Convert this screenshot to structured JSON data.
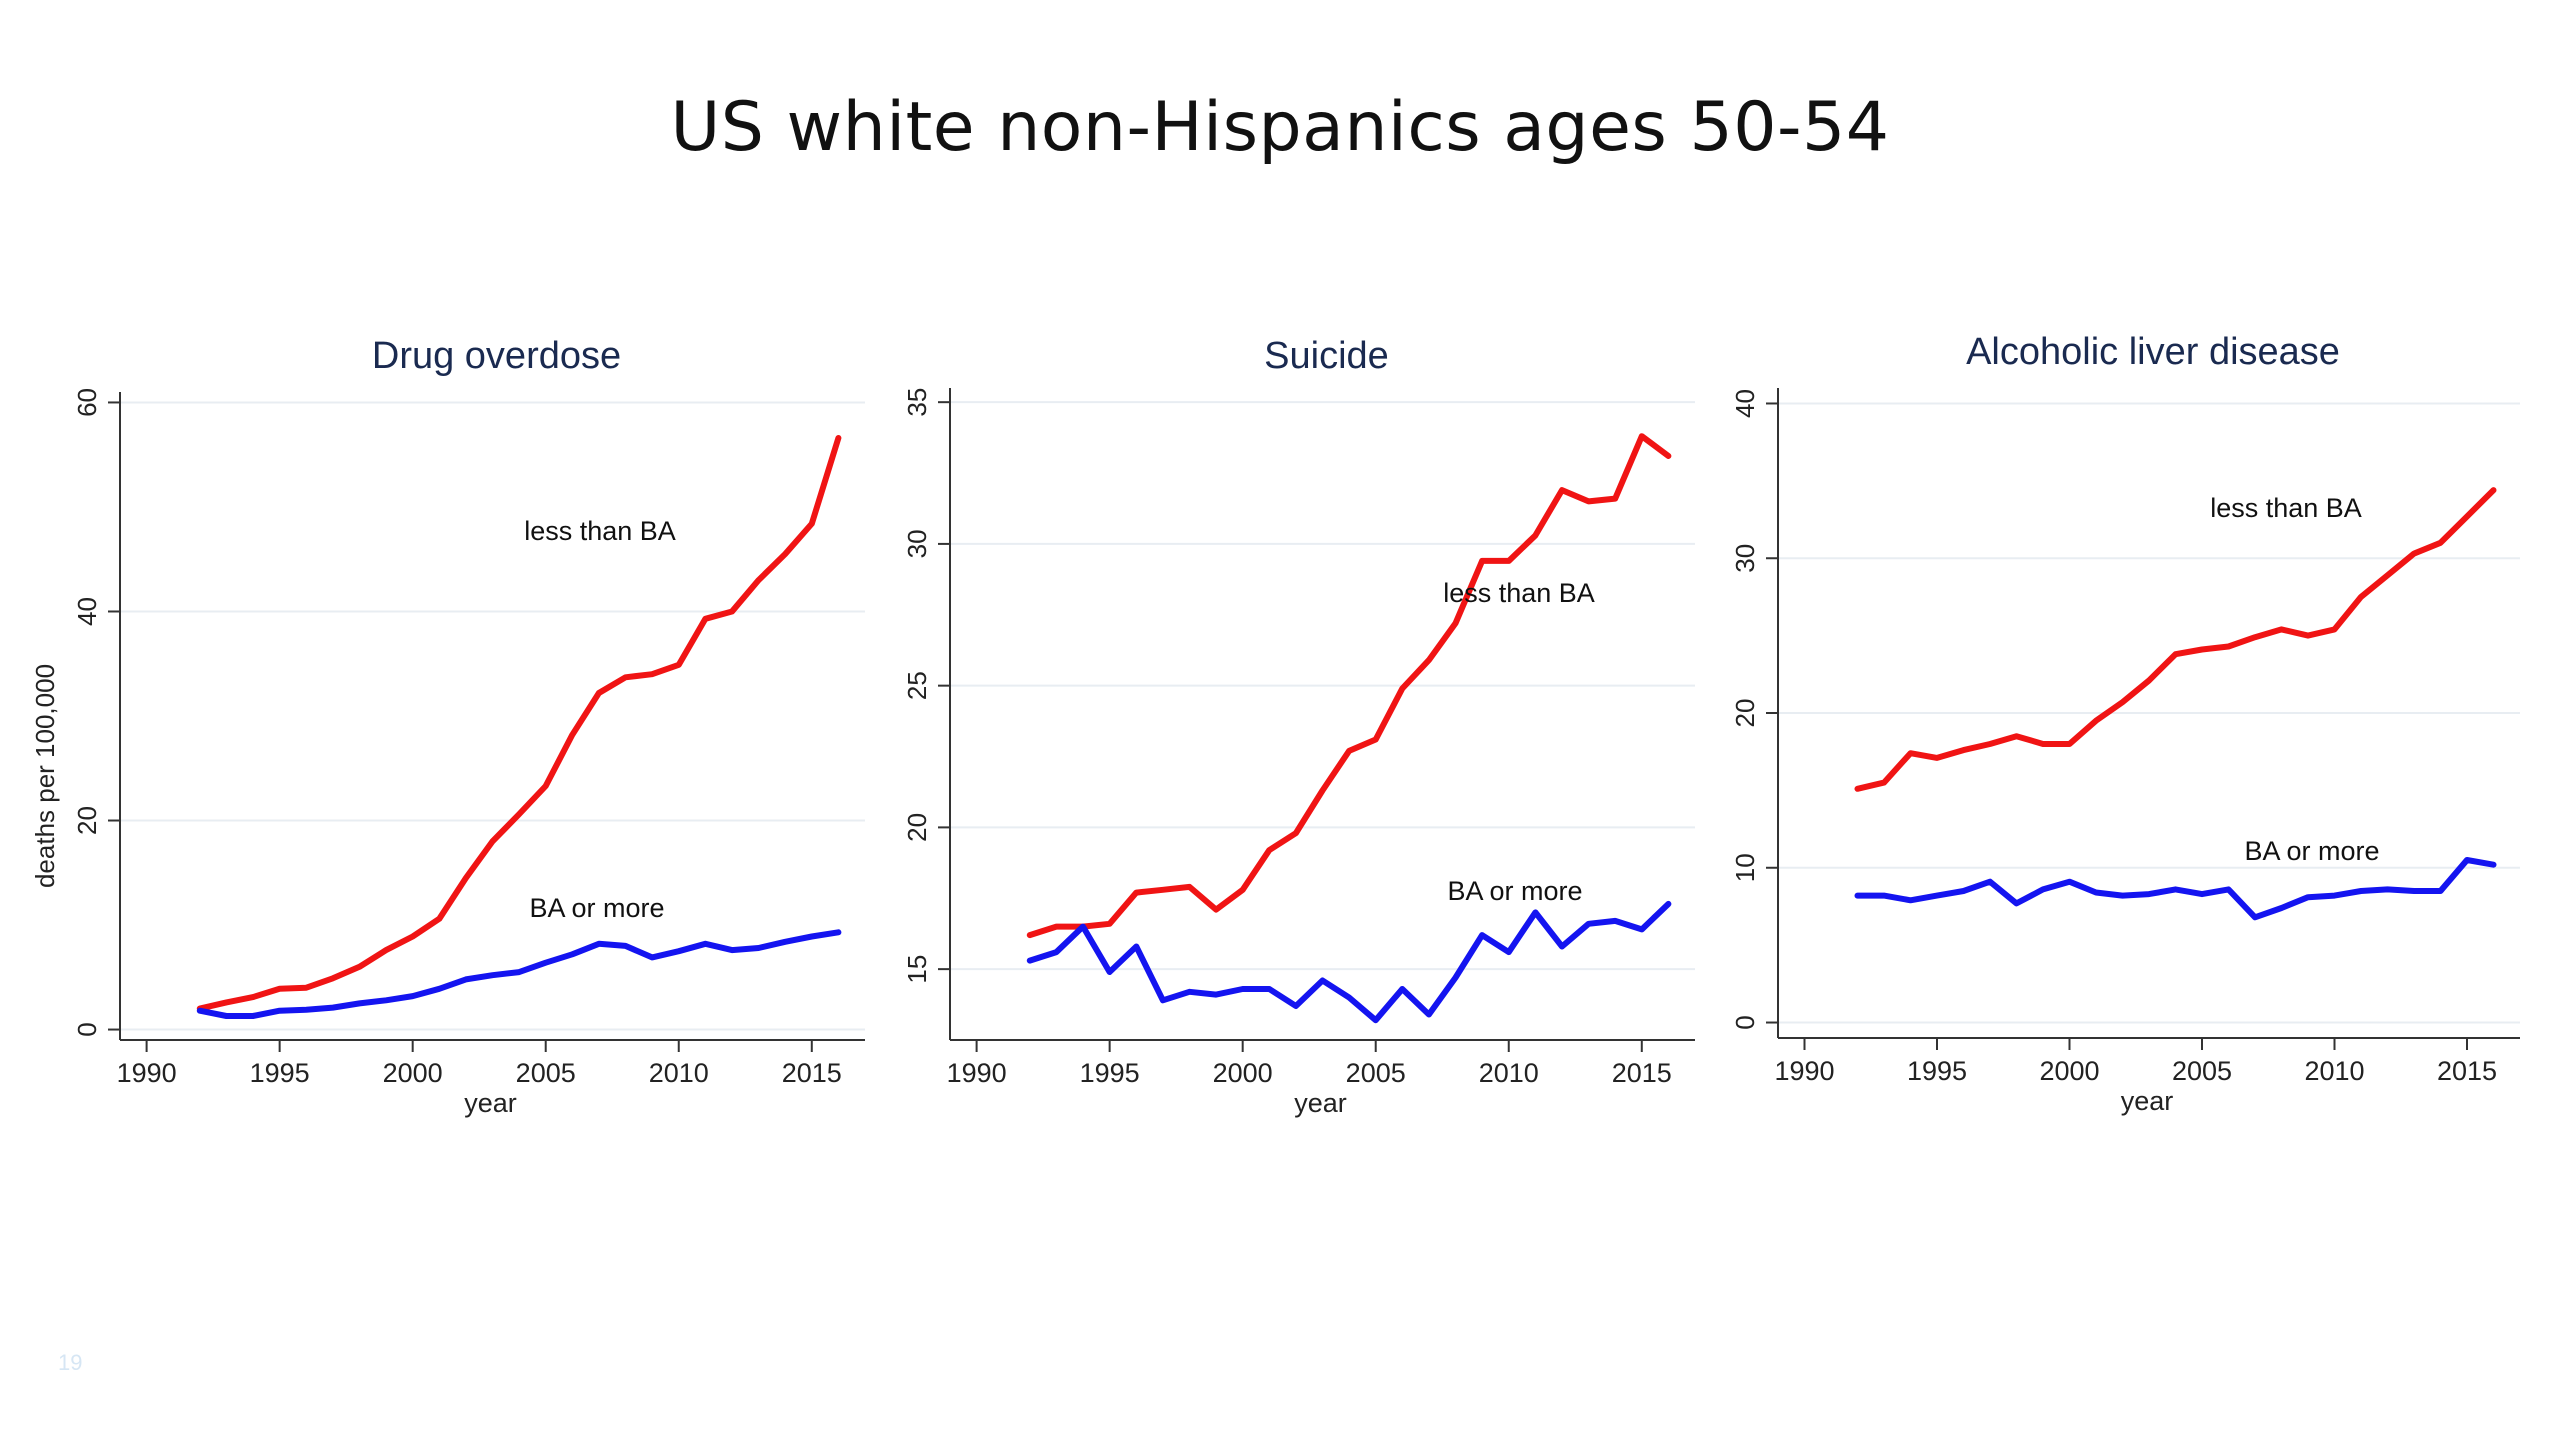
{
  "slide": {
    "title": "US white non-Hispanics ages 50-54",
    "page_number": "19"
  },
  "colors": {
    "less_than_ba": "#f01414",
    "ba_or_more": "#1414f0",
    "title_text": "#1a2a50",
    "grid": "#e8edf2",
    "axis": "#333333"
  },
  "chart_data": [
    {
      "type": "line",
      "title": "Drug overdose",
      "xlabel": "year",
      "ylabel": "deaths per 100,000",
      "xlim": [
        1989,
        2017
      ],
      "ylim": [
        -1,
        61
      ],
      "xticks": [
        1990,
        1995,
        2000,
        2005,
        2010,
        2015
      ],
      "yticks": [
        0,
        20,
        40,
        60
      ],
      "grid": true,
      "x": [
        1992,
        1993,
        1994,
        1995,
        1996,
        1997,
        1998,
        1999,
        2000,
        2001,
        2002,
        2003,
        2004,
        2005,
        2006,
        2007,
        2008,
        2009,
        2010,
        2011,
        2012,
        2013,
        2014,
        2015,
        2016
      ],
      "series": [
        {
          "name": "less than BA",
          "key": "less_than_ba",
          "values": [
            2.0,
            2.6,
            3.1,
            3.9,
            4.0,
            4.9,
            6.0,
            7.6,
            8.9,
            10.6,
            14.5,
            18.0,
            20.6,
            23.3,
            28.2,
            32.2,
            33.7,
            34.0,
            34.9,
            39.3,
            40.0,
            43.0,
            45.5,
            48.4,
            56.6
          ]
        },
        {
          "name": "BA or more",
          "key": "ba_or_more",
          "values": [
            1.8,
            1.3,
            1.3,
            1.8,
            1.9,
            2.1,
            2.5,
            2.8,
            3.2,
            3.9,
            4.8,
            5.2,
            5.5,
            6.4,
            7.2,
            8.2,
            8.0,
            6.9,
            7.5,
            8.2,
            7.6,
            7.8,
            8.4,
            8.9,
            9.3
          ]
        }
      ],
      "annotations": [
        {
          "text": "less than BA",
          "series": "less_than_ba"
        },
        {
          "text": "BA or more",
          "series": "ba_or_more"
        }
      ]
    },
    {
      "type": "line",
      "title": "Suicide",
      "xlabel": "year",
      "ylabel": "",
      "xlim": [
        1989,
        2017
      ],
      "ylim": [
        12.5,
        35.5
      ],
      "xticks": [
        1990,
        1995,
        2000,
        2005,
        2010,
        2015
      ],
      "yticks": [
        15,
        20,
        25,
        30,
        35
      ],
      "grid": true,
      "x": [
        1992,
        1993,
        1994,
        1995,
        1996,
        1997,
        1998,
        1999,
        2000,
        2001,
        2002,
        2003,
        2004,
        2005,
        2006,
        2007,
        2008,
        2009,
        2010,
        2011,
        2012,
        2013,
        2014,
        2015,
        2016
      ],
      "series": [
        {
          "name": "less than BA",
          "key": "less_than_ba",
          "values": [
            16.2,
            16.5,
            16.5,
            16.6,
            17.7,
            17.8,
            17.9,
            17.1,
            17.8,
            19.2,
            19.8,
            21.3,
            22.7,
            23.1,
            24.9,
            25.9,
            27.2,
            29.4,
            29.4,
            30.3,
            31.9,
            31.5,
            31.6,
            33.8,
            33.1
          ]
        },
        {
          "name": "BA or more",
          "key": "ba_or_more",
          "values": [
            15.3,
            15.6,
            16.5,
            14.9,
            15.8,
            13.9,
            14.2,
            14.1,
            14.3,
            14.3,
            13.7,
            14.6,
            14.0,
            13.2,
            14.3,
            13.4,
            14.7,
            16.2,
            15.6,
            17.0,
            15.8,
            16.6,
            16.7,
            16.4,
            17.3
          ]
        }
      ],
      "annotations": [
        {
          "text": "less than BA",
          "series": "less_than_ba"
        },
        {
          "text": "BA or more",
          "series": "ba_or_more"
        }
      ]
    },
    {
      "type": "line",
      "title": "Alcoholic liver disease",
      "xlabel": "year",
      "ylabel": "",
      "xlim": [
        1989,
        2017
      ],
      "ylim": [
        -1,
        41
      ],
      "xticks": [
        1990,
        1995,
        2000,
        2005,
        2010,
        2015
      ],
      "yticks": [
        0,
        10,
        20,
        30,
        40
      ],
      "grid": true,
      "x": [
        1992,
        1993,
        1994,
        1995,
        1996,
        1997,
        1998,
        1999,
        2000,
        2001,
        2002,
        2003,
        2004,
        2005,
        2006,
        2007,
        2008,
        2009,
        2010,
        2011,
        2012,
        2013,
        2014,
        2015,
        2016
      ],
      "series": [
        {
          "name": "less than BA",
          "key": "less_than_ba",
          "values": [
            15.1,
            15.5,
            17.4,
            17.1,
            17.6,
            18.0,
            18.5,
            18.0,
            18.0,
            19.5,
            20.7,
            22.1,
            23.8,
            24.1,
            24.3,
            24.9,
            25.4,
            25.0,
            25.4,
            27.5,
            28.9,
            30.3,
            31.0,
            32.7,
            34.4
          ]
        },
        {
          "name": "BA or more",
          "key": "ba_or_more",
          "values": [
            8.2,
            8.2,
            7.9,
            8.2,
            8.5,
            9.1,
            7.7,
            8.6,
            9.1,
            8.4,
            8.2,
            8.3,
            8.6,
            8.3,
            8.6,
            6.8,
            7.4,
            8.1,
            8.2,
            8.5,
            8.6,
            8.5,
            8.5,
            10.5,
            10.2
          ]
        }
      ],
      "annotations": [
        {
          "text": "less than BA",
          "series": "less_than_ba"
        },
        {
          "text": "BA or more",
          "series": "ba_or_more"
        }
      ]
    }
  ]
}
